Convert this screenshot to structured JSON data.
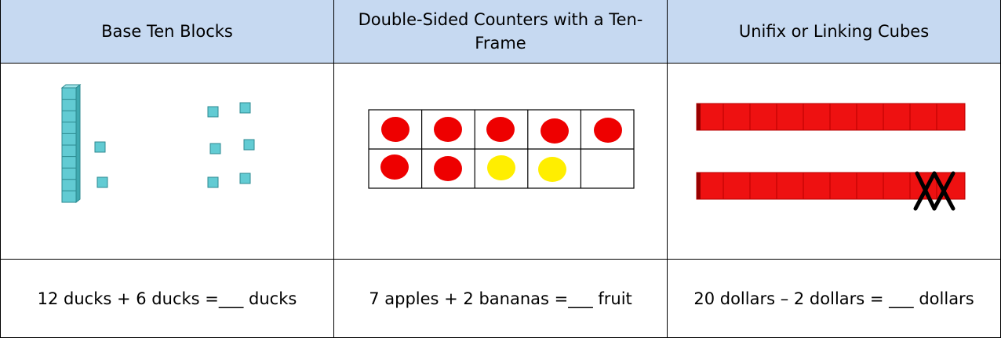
{
  "table": {
    "columns": [
      "Base Ten Blocks",
      "Double-Sided Counters with a Ten-Frame",
      "Unifix or Linking Cubes"
    ],
    "rows": [
      [
        "12 ducks + 6 ducks =___ ducks",
        "7 apples + 2 bananas =___ fruit",
        "20 dollars – 2 dollars = ___ dollars"
      ]
    ]
  }
}
